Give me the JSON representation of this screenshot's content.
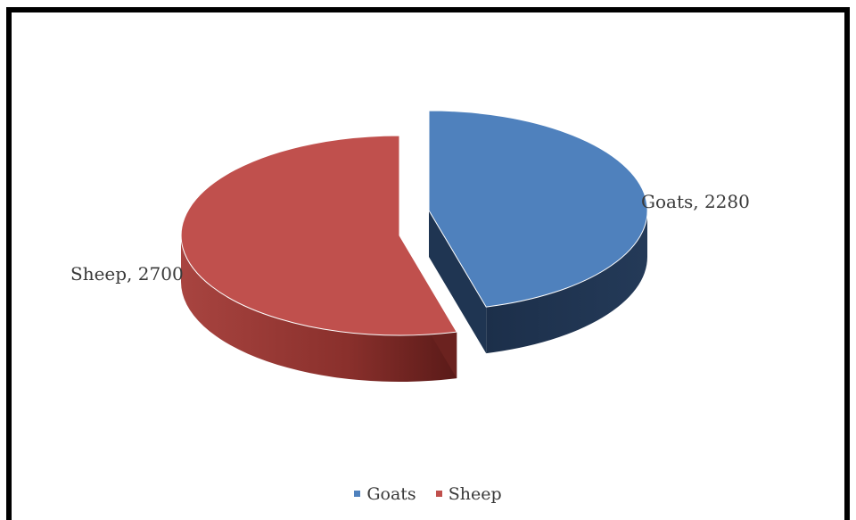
{
  "chart_data": {
    "type": "pie",
    "title": "",
    "categories": [
      "Goats",
      "Sheep"
    ],
    "values": [
      2280,
      2700
    ],
    "colors": [
      "#4f81bd",
      "#c0504d"
    ],
    "side_colors": [
      "#1f3552",
      "#6b221f"
    ],
    "data_labels": [
      "Goats, 2280",
      "Sheep, 2700"
    ],
    "legend": {
      "position": "bottom",
      "items": [
        {
          "label": "Goats",
          "color": "#4f81bd"
        },
        {
          "label": "Sheep",
          "color": "#c0504d"
        }
      ]
    },
    "style": "3d-exploded"
  }
}
